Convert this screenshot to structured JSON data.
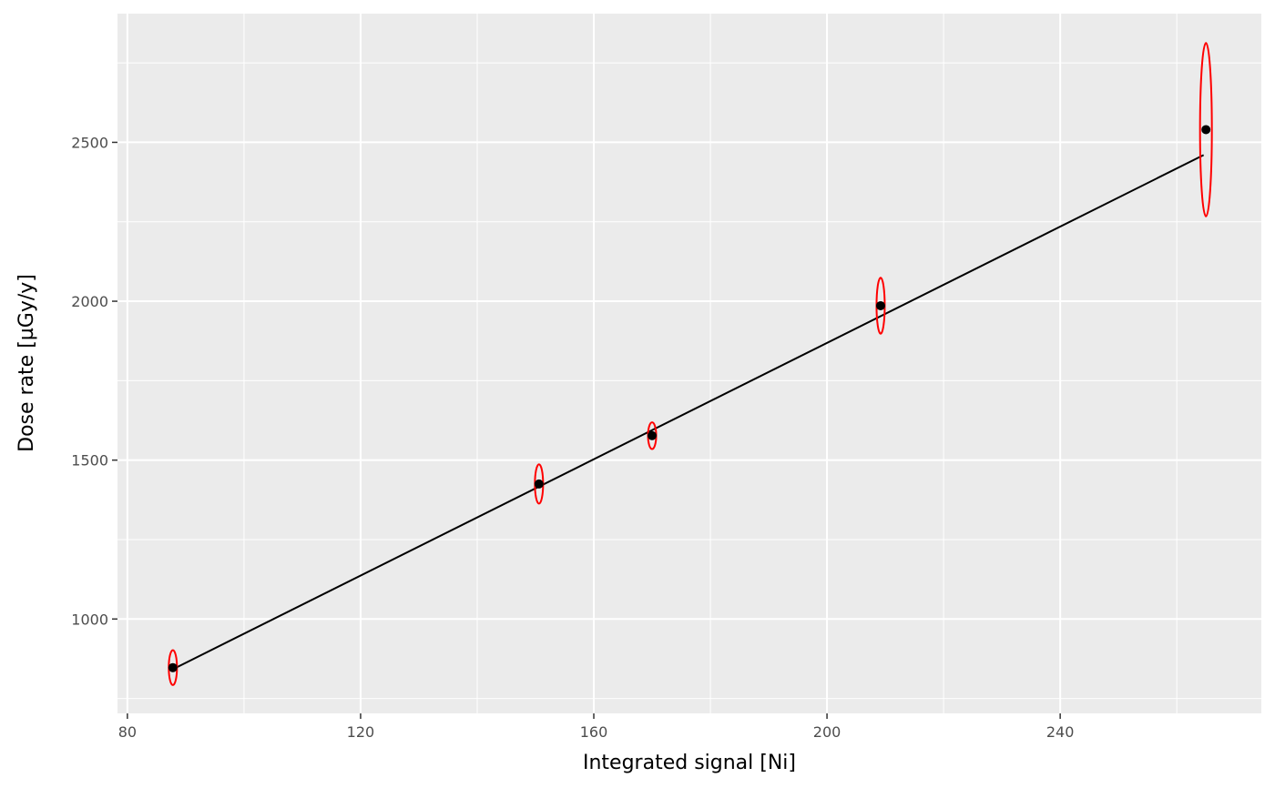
{
  "chart_data": {
    "type": "scatter",
    "xlabel": "Integrated signal [Ni]",
    "ylabel": "Dose rate [µGy/y]",
    "xlim": [
      78.3,
      274.5
    ],
    "ylim": [
      703,
      2905
    ],
    "x_ticks": [
      80,
      120,
      160,
      200,
      240
    ],
    "y_ticks": [
      1000,
      1500,
      2000,
      2500
    ],
    "x_minor": [
      100,
      140,
      180,
      220,
      260
    ],
    "y_minor": [
      750,
      1250,
      1750,
      2250,
      2750
    ],
    "grid": true,
    "points": [
      {
        "x": 87.8,
        "y": 847,
        "y_err": 55
      },
      {
        "x": 150.6,
        "y": 1425,
        "y_err": 62
      },
      {
        "x": 170.0,
        "y": 1577,
        "y_err": 42
      },
      {
        "x": 209.2,
        "y": 1986,
        "y_err": 88
      },
      {
        "x": 265.0,
        "y": 2540,
        "y_err": 273
      }
    ],
    "fit_line": {
      "x": [
        87.8,
        264.6
      ],
      "y": [
        842,
        2460
      ]
    },
    "colors": {
      "panel": "#EBEBEB",
      "grid": "#FFFFFF",
      "point": "#000000",
      "ellipse": "#FF0000",
      "line": "#000000"
    }
  }
}
